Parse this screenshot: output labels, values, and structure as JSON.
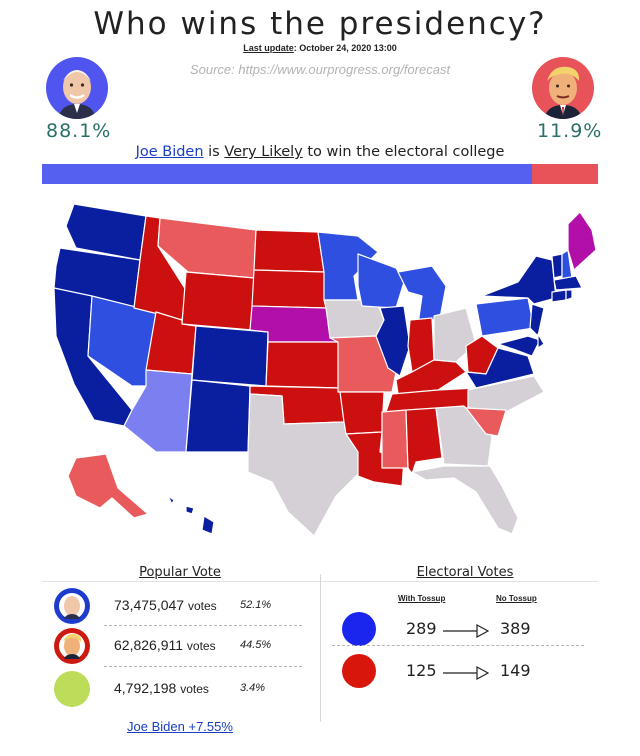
{
  "header": {
    "title": "Who wins the presidency?",
    "last_update_label": "Last update",
    "last_update_value": ": October 24, 2020 13:00",
    "source": "Source: https://www.ourprogress.org/forecast"
  },
  "candidates": {
    "biden": {
      "name": "Joe Biden",
      "win_probability": "88.1%",
      "color": "#5660f0"
    },
    "trump": {
      "name": "Trump",
      "win_probability": "11.9%",
      "color": "#e8535a"
    }
  },
  "verdict": {
    "candidate": "Joe Biden",
    "is": " is ",
    "likelihood": "Very Likely",
    "rest": " to win the electoral college"
  },
  "probability_bar": {
    "biden_share": 0.881,
    "trump_share": 0.119
  },
  "map_legend_colors": {
    "safe_dem": "#0a1ea0",
    "likely_dem": "#2f4fe0",
    "lean_dem": "#7c7ff0",
    "tossup": "#d5d0d6",
    "lean_rep": "#e85a5c",
    "likely_rep": "#cc1010",
    "split": "#b10fa8"
  },
  "popular_vote": {
    "heading": "Popular Vote",
    "rows": [
      {
        "candidate": "biden",
        "votes": "73,475,047",
        "unit": "votes",
        "share": "52.1%",
        "color": "#1e3ccc"
      },
      {
        "candidate": "trump",
        "votes": "62,826,911",
        "unit": "votes",
        "share": "44.5%",
        "color": "#cc1a10"
      },
      {
        "candidate": "other",
        "votes": "4,792,198",
        "unit": "votes",
        "share": "3.4%",
        "color": "#bcdc5a"
      }
    ],
    "margin": "Joe Biden +7.55%"
  },
  "electoral_votes": {
    "heading": "Electoral Votes",
    "with_tossup_label": "With Tossup",
    "no_tossup_label": "No Tossup",
    "rows": [
      {
        "candidate": "biden",
        "with_tossup": "289",
        "no_tossup": "389",
        "color": "#1a25ee"
      },
      {
        "candidate": "trump",
        "with_tossup": "125",
        "no_tossup": "149",
        "color": "#d8160c"
      }
    ]
  }
}
